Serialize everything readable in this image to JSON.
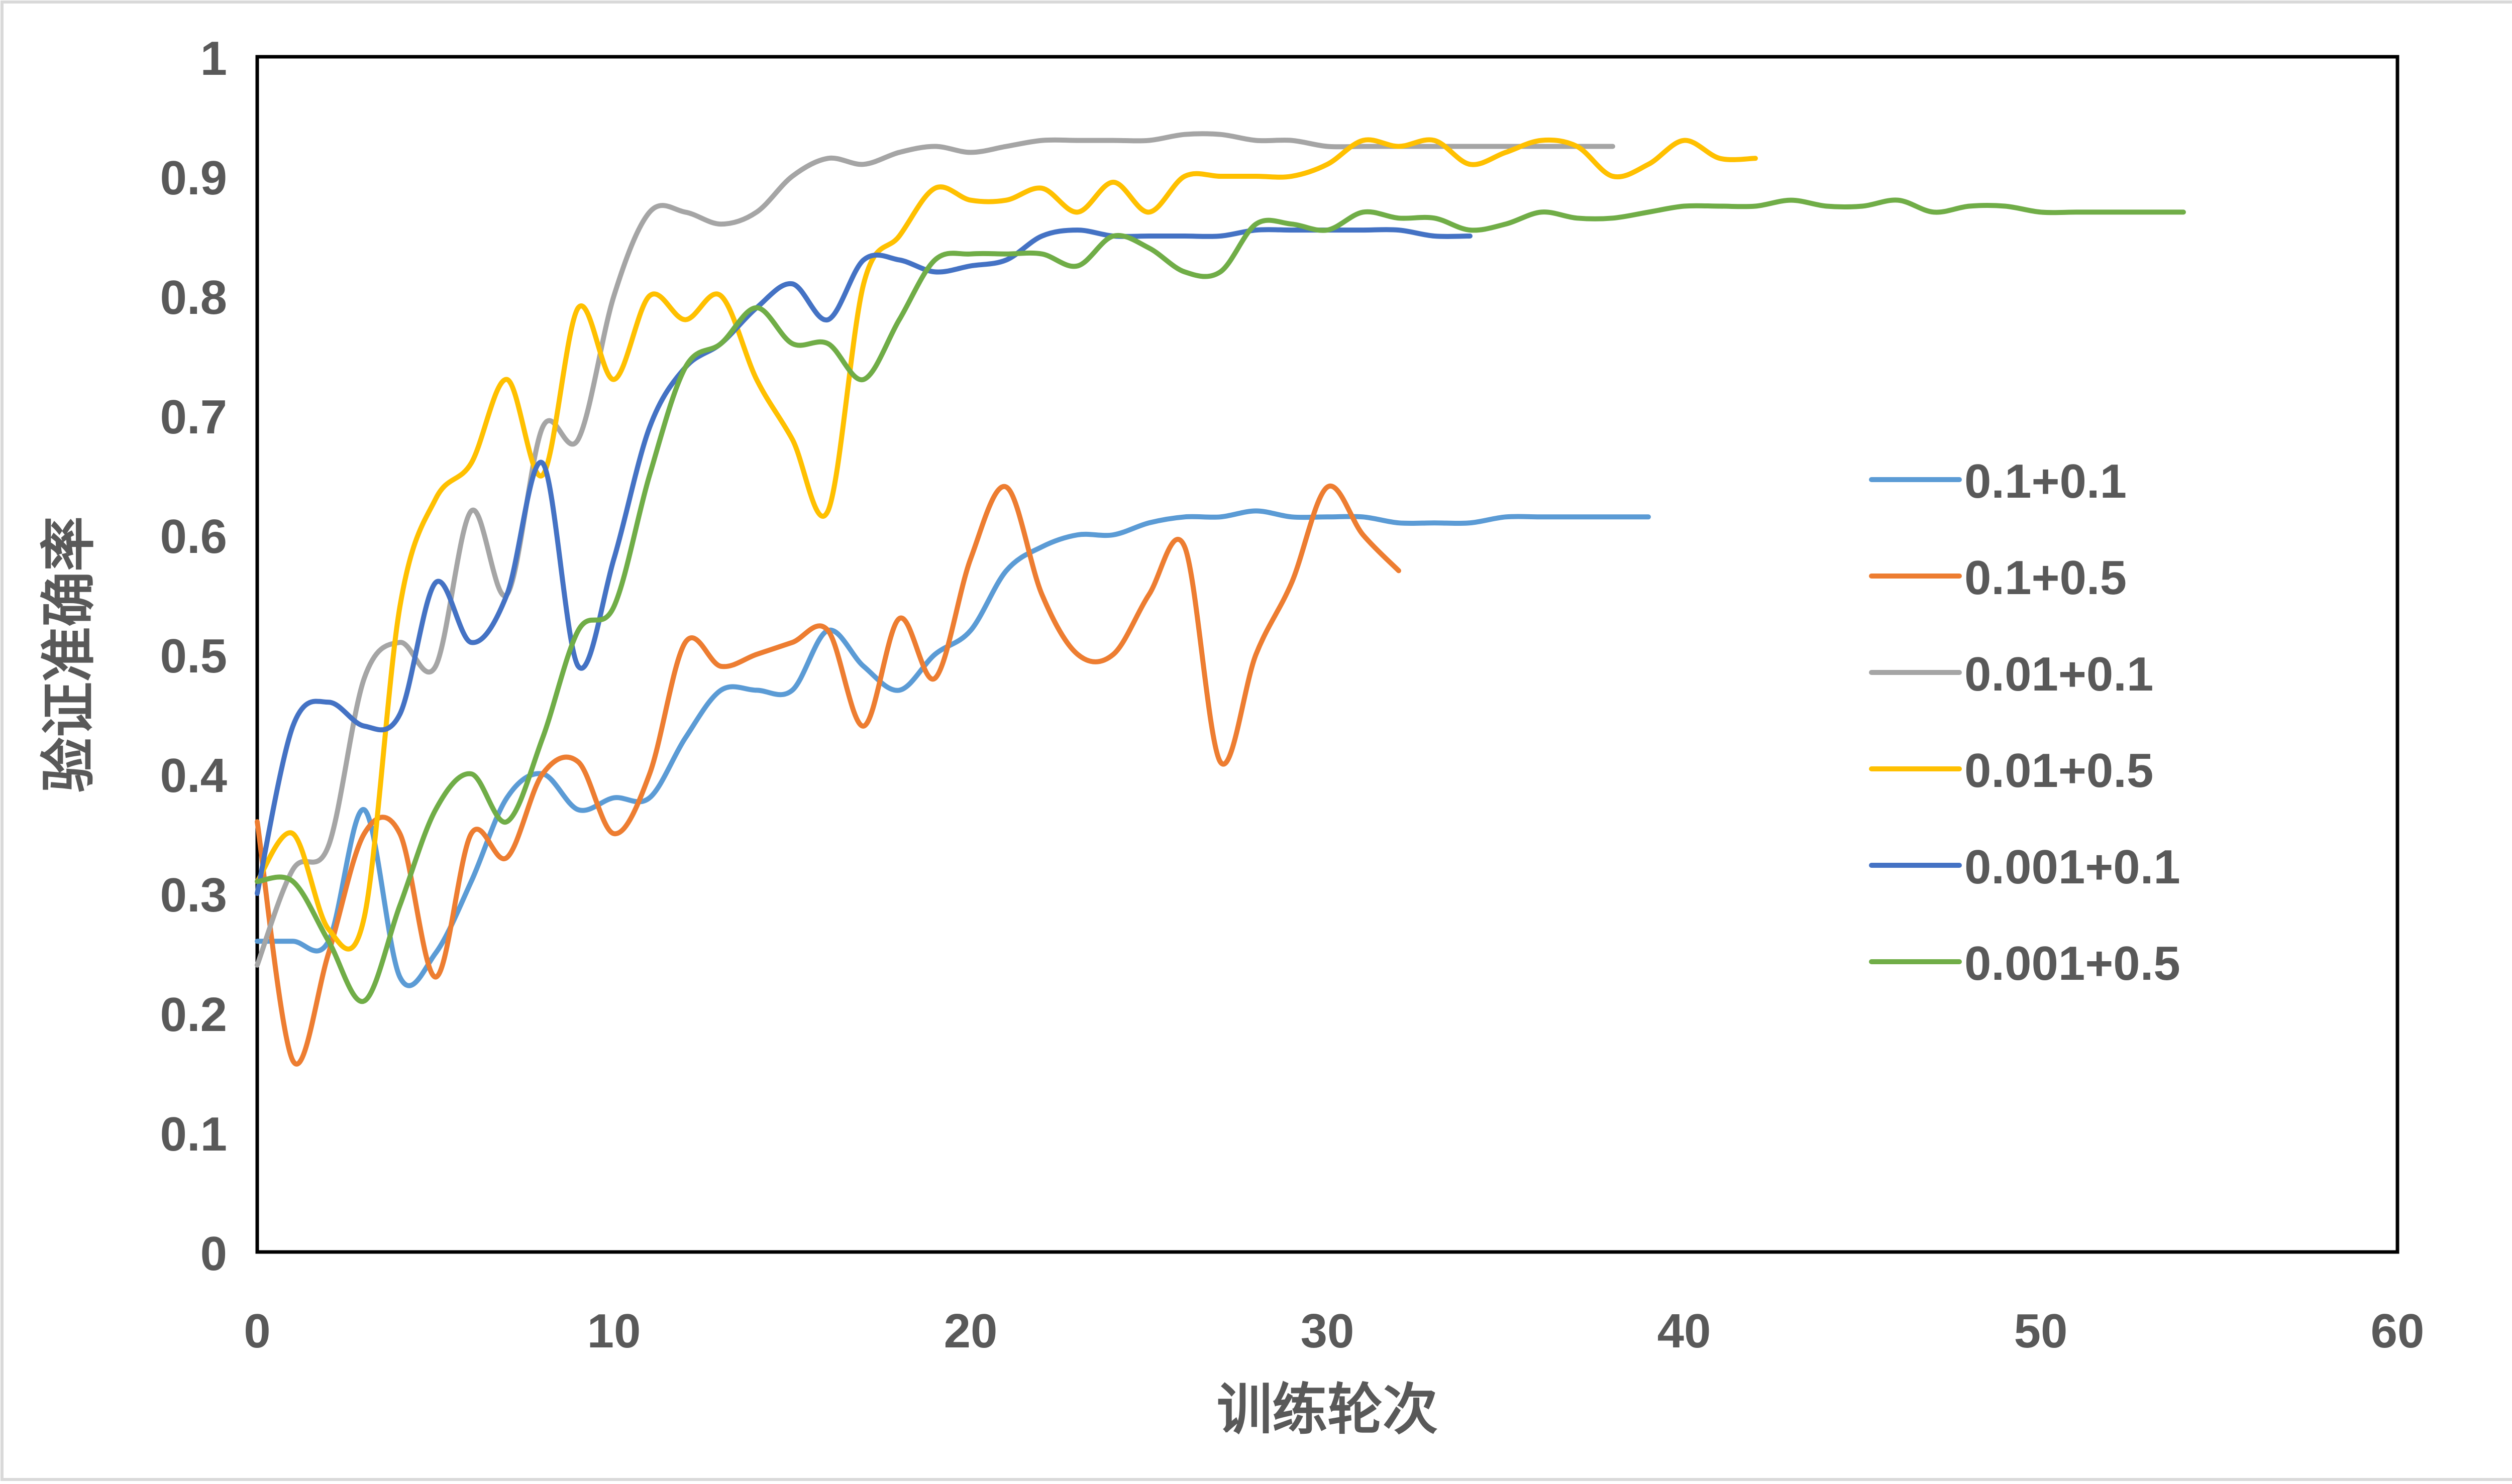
{
  "chart_data": {
    "type": "line",
    "title": "",
    "xlabel": "训练轮次",
    "ylabel": "验证准确率",
    "xlim": [
      0,
      60
    ],
    "ylim": [
      0,
      1
    ],
    "xticks": [
      0,
      10,
      20,
      30,
      40,
      50,
      60
    ],
    "xtick_labels": [
      "0",
      "10",
      "20",
      "30",
      "40",
      "50",
      "60"
    ],
    "yticks": [
      0,
      0.1,
      0.2,
      0.3,
      0.4,
      0.5,
      0.6,
      0.7,
      0.8,
      0.9,
      1
    ],
    "ytick_labels": [
      "0",
      "0.1",
      "0.2",
      "0.3",
      "0.4",
      "0.5",
      "0.6",
      "0.7",
      "0.8",
      "0.9",
      "1"
    ],
    "grid": false,
    "legend_position": "right",
    "series": [
      {
        "name": "0.1+0.1",
        "color": "#5B9BD5",
        "x": [
          0,
          1,
          2,
          3,
          4,
          5,
          6,
          7,
          8,
          9,
          10,
          11,
          12,
          13,
          14,
          15,
          16,
          17,
          18,
          19,
          20,
          21,
          22,
          23,
          24,
          25,
          26,
          27,
          28,
          29,
          30,
          31,
          32,
          33,
          34,
          35,
          36,
          37,
          38,
          39
        ],
        "y": [
          0.26,
          0.26,
          0.26,
          0.37,
          0.23,
          0.25,
          0.31,
          0.38,
          0.4,
          0.37,
          0.38,
          0.38,
          0.43,
          0.47,
          0.47,
          0.47,
          0.52,
          0.49,
          0.47,
          0.5,
          0.52,
          0.57,
          0.59,
          0.6,
          0.6,
          0.61,
          0.615,
          0.615,
          0.62,
          0.615,
          0.615,
          0.615,
          0.61,
          0.61,
          0.61,
          0.615,
          0.615,
          0.615,
          0.615,
          0.615
        ]
      },
      {
        "name": "0.1+0.5",
        "color": "#ED7D31",
        "x": [
          0,
          1,
          2,
          3,
          4,
          5,
          6,
          7,
          8,
          9,
          10,
          11,
          12,
          13,
          14,
          15,
          16,
          17,
          18,
          19,
          20,
          21,
          22,
          23,
          24,
          25,
          26,
          27,
          28,
          29,
          30,
          31,
          32
        ],
        "y": [
          0.36,
          0.16,
          0.25,
          0.35,
          0.35,
          0.23,
          0.35,
          0.33,
          0.4,
          0.41,
          0.35,
          0.4,
          0.51,
          0.49,
          0.5,
          0.51,
          0.52,
          0.44,
          0.53,
          0.48,
          0.58,
          0.64,
          0.55,
          0.5,
          0.5,
          0.55,
          0.59,
          0.41,
          0.5,
          0.56,
          0.64,
          0.6,
          0.57
        ]
      },
      {
        "name": "0.01+0.1",
        "color": "#A5A5A5",
        "x": [
          0,
          1,
          2,
          3,
          4,
          5,
          6,
          7,
          8,
          9,
          10,
          11,
          12,
          13,
          14,
          15,
          16,
          17,
          18,
          19,
          20,
          21,
          22,
          23,
          24,
          25,
          26,
          27,
          28,
          29,
          30,
          31,
          32,
          33,
          34,
          35,
          36,
          37,
          38
        ],
        "y": [
          0.24,
          0.32,
          0.34,
          0.48,
          0.51,
          0.49,
          0.62,
          0.55,
          0.69,
          0.68,
          0.8,
          0.87,
          0.87,
          0.86,
          0.87,
          0.9,
          0.915,
          0.91,
          0.92,
          0.925,
          0.92,
          0.925,
          0.93,
          0.93,
          0.93,
          0.93,
          0.935,
          0.935,
          0.93,
          0.93,
          0.925,
          0.925,
          0.925,
          0.925,
          0.925,
          0.925,
          0.925,
          0.925,
          0.925
        ]
      },
      {
        "name": "0.01+0.5",
        "color": "#FFC000",
        "x": [
          0,
          1,
          2,
          3,
          4,
          5,
          6,
          7,
          8,
          9,
          10,
          11,
          12,
          13,
          14,
          15,
          16,
          17,
          18,
          19,
          20,
          21,
          22,
          23,
          24,
          25,
          26,
          27,
          28,
          29,
          30,
          31,
          32,
          33,
          34,
          35,
          36,
          37,
          38,
          39,
          40,
          41,
          42
        ],
        "y": [
          0.31,
          0.35,
          0.27,
          0.28,
          0.54,
          0.63,
          0.66,
          0.73,
          0.65,
          0.79,
          0.73,
          0.8,
          0.78,
          0.8,
          0.73,
          0.68,
          0.62,
          0.81,
          0.85,
          0.89,
          0.88,
          0.88,
          0.89,
          0.87,
          0.895,
          0.87,
          0.9,
          0.9,
          0.9,
          0.9,
          0.91,
          0.93,
          0.925,
          0.93,
          0.91,
          0.92,
          0.93,
          0.925,
          0.9,
          0.91,
          0.93,
          0.915,
          0.915
        ]
      },
      {
        "name": "0.001+0.1",
        "color": "#4472C4",
        "x": [
          0,
          1,
          2,
          3,
          4,
          5,
          6,
          7,
          8,
          9,
          10,
          11,
          12,
          13,
          14,
          15,
          16,
          17,
          18,
          19,
          20,
          21,
          22,
          23,
          24,
          25,
          26,
          27,
          28,
          29,
          30,
          31,
          32,
          33,
          34
        ],
        "y": [
          0.3,
          0.44,
          0.46,
          0.44,
          0.45,
          0.56,
          0.51,
          0.55,
          0.66,
          0.49,
          0.58,
          0.69,
          0.74,
          0.76,
          0.79,
          0.81,
          0.78,
          0.83,
          0.83,
          0.82,
          0.825,
          0.83,
          0.85,
          0.855,
          0.85,
          0.85,
          0.85,
          0.85,
          0.855,
          0.855,
          0.855,
          0.855,
          0.855,
          0.85,
          0.85
        ]
      },
      {
        "name": "0.001+0.5",
        "color": "#70AD47",
        "x": [
          0,
          1,
          2,
          3,
          4,
          5,
          6,
          7,
          8,
          9,
          10,
          11,
          12,
          13,
          14,
          15,
          16,
          17,
          18,
          19,
          20,
          21,
          22,
          23,
          24,
          25,
          26,
          27,
          28,
          29,
          30,
          31,
          32,
          33,
          34,
          35,
          36,
          37,
          38,
          39,
          40,
          41,
          42,
          43,
          44,
          45,
          46,
          47,
          48,
          49,
          50,
          51,
          52,
          53,
          54
        ],
        "y": [
          0.31,
          0.31,
          0.26,
          0.21,
          0.29,
          0.37,
          0.4,
          0.36,
          0.43,
          0.52,
          0.54,
          0.65,
          0.74,
          0.76,
          0.79,
          0.76,
          0.76,
          0.73,
          0.78,
          0.83,
          0.835,
          0.835,
          0.835,
          0.825,
          0.85,
          0.84,
          0.82,
          0.82,
          0.86,
          0.86,
          0.855,
          0.87,
          0.865,
          0.865,
          0.855,
          0.86,
          0.87,
          0.865,
          0.865,
          0.87,
          0.875,
          0.875,
          0.875,
          0.88,
          0.875,
          0.875,
          0.88,
          0.87,
          0.875,
          0.875,
          0.87,
          0.87,
          0.87,
          0.87,
          0.87
        ]
      }
    ]
  }
}
